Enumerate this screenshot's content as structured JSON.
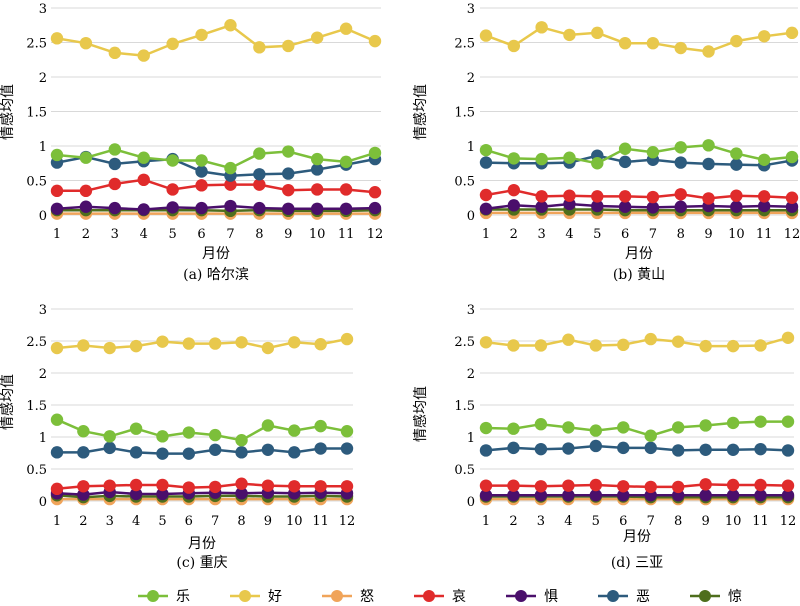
{
  "chart_data": [
    {
      "type": "line",
      "caption": "(a) 哈尔滨",
      "xlabel": "月份",
      "ylabel": "情感均值",
      "x": [
        1,
        2,
        3,
        4,
        5,
        6,
        7,
        8,
        9,
        10,
        11,
        12
      ],
      "yticks": [
        "0",
        "0.5",
        "1",
        "1.5",
        "2",
        "2.5",
        "3"
      ],
      "ylim": [
        0,
        3
      ],
      "grid": true,
      "series": [
        {
          "key": "le",
          "values": [
            0.87,
            0.83,
            0.95,
            0.83,
            0.79,
            0.79,
            0.68,
            0.89,
            0.92,
            0.81,
            0.77,
            0.9
          ]
        },
        {
          "key": "hao",
          "values": [
            2.56,
            2.49,
            2.35,
            2.31,
            2.48,
            2.61,
            2.75,
            2.43,
            2.45,
            2.57,
            2.7,
            2.52
          ]
        },
        {
          "key": "nu",
          "values": [
            0.02,
            0.02,
            0.02,
            0.02,
            0.02,
            0.02,
            0.02,
            0.02,
            0.02,
            0.02,
            0.02,
            0.02
          ]
        },
        {
          "key": "ai",
          "values": [
            0.35,
            0.35,
            0.45,
            0.51,
            0.37,
            0.43,
            0.44,
            0.44,
            0.36,
            0.37,
            0.37,
            0.33
          ]
        },
        {
          "key": "ju",
          "values": [
            0.09,
            0.12,
            0.1,
            0.08,
            0.11,
            0.1,
            0.13,
            0.1,
            0.09,
            0.09,
            0.09,
            0.1
          ]
        },
        {
          "key": "wu",
          "values": [
            0.76,
            0.84,
            0.74,
            0.78,
            0.81,
            0.63,
            0.57,
            0.59,
            0.6,
            0.66,
            0.73,
            0.81
          ]
        },
        {
          "key": "jing",
          "values": [
            0.07,
            0.07,
            0.07,
            0.07,
            0.07,
            0.07,
            0.06,
            0.07,
            0.06,
            0.06,
            0.06,
            0.07
          ]
        }
      ]
    },
    {
      "type": "line",
      "caption": "(b) 黄山",
      "xlabel": "月份",
      "ylabel": "情感均值",
      "x": [
        1,
        2,
        3,
        4,
        5,
        6,
        7,
        8,
        9,
        10,
        11,
        12
      ],
      "yticks": [
        "0",
        "0.5",
        "1",
        "1.5",
        "2",
        "2.5",
        "3"
      ],
      "ylim": [
        0,
        3
      ],
      "grid": true,
      "series": [
        {
          "key": "le",
          "values": [
            0.94,
            0.82,
            0.81,
            0.83,
            0.75,
            0.96,
            0.91,
            0.98,
            1.01,
            0.89,
            0.8,
            0.84
          ]
        },
        {
          "key": "hao",
          "values": [
            2.6,
            2.45,
            2.72,
            2.61,
            2.64,
            2.49,
            2.49,
            2.42,
            2.37,
            2.52,
            2.59,
            2.64
          ]
        },
        {
          "key": "nu",
          "values": [
            0.03,
            0.03,
            0.03,
            0.03,
            0.03,
            0.03,
            0.03,
            0.03,
            0.03,
            0.03,
            0.03,
            0.03
          ]
        },
        {
          "key": "ai",
          "values": [
            0.29,
            0.36,
            0.27,
            0.28,
            0.27,
            0.27,
            0.26,
            0.3,
            0.24,
            0.28,
            0.27,
            0.25
          ]
        },
        {
          "key": "ju",
          "values": [
            0.09,
            0.14,
            0.12,
            0.16,
            0.13,
            0.12,
            0.11,
            0.12,
            0.13,
            0.12,
            0.13,
            0.12
          ]
        },
        {
          "key": "wu",
          "values": [
            0.76,
            0.75,
            0.75,
            0.76,
            0.86,
            0.77,
            0.8,
            0.76,
            0.74,
            0.73,
            0.72,
            0.79
          ]
        },
        {
          "key": "jing",
          "values": [
            0.08,
            0.08,
            0.08,
            0.08,
            0.08,
            0.07,
            0.07,
            0.07,
            0.07,
            0.07,
            0.07,
            0.07
          ]
        }
      ]
    },
    {
      "type": "line",
      "caption": "(c) 重庆",
      "xlabel": "月份",
      "ylabel": "情感均值",
      "x": [
        1,
        2,
        3,
        4,
        5,
        6,
        7,
        8,
        9,
        10,
        11,
        12
      ],
      "yticks": [
        "0",
        "0.5",
        "1",
        "1.5",
        "2",
        "2.5",
        "3"
      ],
      "ylim": [
        0,
        3
      ],
      "grid": true,
      "series": [
        {
          "key": "le",
          "values": [
            1.27,
            1.09,
            1.01,
            1.13,
            1.01,
            1.07,
            1.03,
            0.95,
            1.18,
            1.1,
            1.17,
            1.09
          ]
        },
        {
          "key": "hao",
          "values": [
            2.39,
            2.43,
            2.39,
            2.42,
            2.49,
            2.46,
            2.46,
            2.48,
            2.39,
            2.48,
            2.45,
            2.53
          ]
        },
        {
          "key": "nu",
          "values": [
            0.03,
            0.03,
            0.03,
            0.03,
            0.03,
            0.03,
            0.03,
            0.03,
            0.03,
            0.03,
            0.03,
            0.03
          ]
        },
        {
          "key": "ai",
          "values": [
            0.19,
            0.23,
            0.24,
            0.25,
            0.25,
            0.21,
            0.22,
            0.27,
            0.24,
            0.23,
            0.23,
            0.23
          ]
        },
        {
          "key": "ju",
          "values": [
            0.12,
            0.1,
            0.14,
            0.11,
            0.11,
            0.12,
            0.13,
            0.12,
            0.13,
            0.12,
            0.13,
            0.12
          ]
        },
        {
          "key": "wu",
          "values": [
            0.76,
            0.76,
            0.83,
            0.76,
            0.74,
            0.74,
            0.8,
            0.76,
            0.8,
            0.76,
            0.82,
            0.82
          ]
        },
        {
          "key": "jing",
          "values": [
            0.09,
            0.06,
            0.08,
            0.07,
            0.07,
            0.07,
            0.08,
            0.08,
            0.07,
            0.07,
            0.08,
            0.07
          ]
        }
      ]
    },
    {
      "type": "line",
      "caption": "(d) 三亚",
      "xlabel": "月份",
      "ylabel": "情感均值",
      "x": [
        1,
        2,
        3,
        4,
        5,
        6,
        7,
        8,
        9,
        10,
        11,
        12
      ],
      "yticks": [
        "0",
        "0.5",
        "1",
        "1.5",
        "2",
        "2.5",
        "3"
      ],
      "ylim": [
        0,
        3
      ],
      "grid": true,
      "series": [
        {
          "key": "le",
          "values": [
            1.14,
            1.13,
            1.2,
            1.15,
            1.1,
            1.15,
            1.02,
            1.15,
            1.18,
            1.22,
            1.24,
            1.24
          ]
        },
        {
          "key": "hao",
          "values": [
            2.48,
            2.43,
            2.43,
            2.52,
            2.43,
            2.44,
            2.53,
            2.49,
            2.42,
            2.42,
            2.43,
            2.55
          ]
        },
        {
          "key": "nu",
          "values": [
            0.03,
            0.03,
            0.03,
            0.03,
            0.03,
            0.03,
            0.03,
            0.03,
            0.03,
            0.03,
            0.03,
            0.03
          ]
        },
        {
          "key": "ai",
          "values": [
            0.24,
            0.24,
            0.23,
            0.24,
            0.25,
            0.23,
            0.22,
            0.22,
            0.26,
            0.25,
            0.25,
            0.24
          ]
        },
        {
          "key": "ju",
          "values": [
            0.09,
            0.09,
            0.09,
            0.09,
            0.09,
            0.09,
            0.09,
            0.09,
            0.09,
            0.09,
            0.09,
            0.09
          ]
        },
        {
          "key": "wu",
          "values": [
            0.79,
            0.83,
            0.81,
            0.82,
            0.86,
            0.83,
            0.83,
            0.79,
            0.8,
            0.8,
            0.81,
            0.79
          ]
        },
        {
          "key": "jing",
          "values": [
            0.07,
            0.07,
            0.07,
            0.07,
            0.07,
            0.07,
            0.06,
            0.06,
            0.06,
            0.06,
            0.06,
            0.06
          ]
        }
      ]
    }
  ],
  "legend": [
    {
      "key": "le",
      "label": "乐",
      "color": "#7cbf3a"
    },
    {
      "key": "hao",
      "label": "好",
      "color": "#e8c84c"
    },
    {
      "key": "nu",
      "label": "怒",
      "color": "#f0a45a"
    },
    {
      "key": "ai",
      "label": "哀",
      "color": "#e02b2b"
    },
    {
      "key": "ju",
      "label": "惧",
      "color": "#4a0f6b"
    },
    {
      "key": "wu",
      "label": "恶",
      "color": "#2d5b7d"
    },
    {
      "key": "jing",
      "label": "惊",
      "color": "#4e6e1c"
    }
  ]
}
